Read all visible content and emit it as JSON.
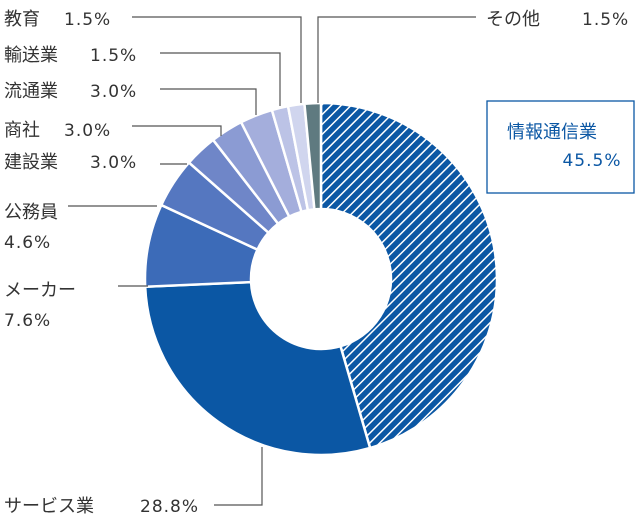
{
  "chart_data": {
    "type": "pie",
    "variant": "donut",
    "categories": [
      "情報通信業",
      "サービス業",
      "メーカー",
      "公務員",
      "建設業",
      "商社",
      "流通業",
      "輸送業",
      "教育",
      "その他"
    ],
    "values": [
      45.5,
      28.8,
      7.6,
      4.6,
      3.0,
      3.0,
      3.0,
      1.5,
      1.5,
      1.5
    ],
    "value_labels": [
      "45.5%",
      "28.8%",
      "7.6%",
      "4.6%",
      "3.0%",
      "3.0%",
      "3.0%",
      "1.5%",
      "1.5%",
      "1.5%"
    ],
    "colors": [
      "#0b57a4",
      "#0b57a4",
      "#3c6bb8",
      "#5577c0",
      "#6f86c8",
      "#8b9bd3",
      "#a4aedc",
      "#bcc3e6",
      "#d0d5ee",
      "#5f7a80"
    ],
    "highlight": "情報通信業",
    "highlight_fill": "diagonal-hatch"
  }
}
